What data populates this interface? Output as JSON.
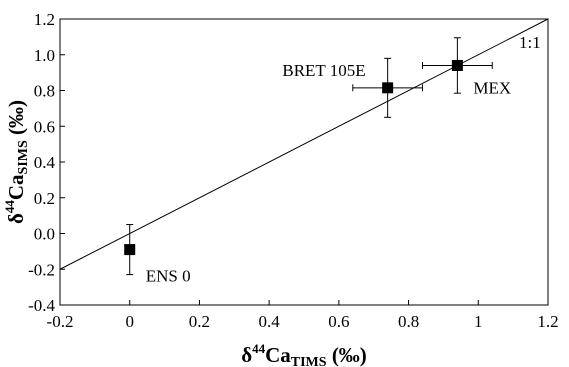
{
  "chart_data": {
    "type": "scatter",
    "title": "",
    "xlabel": {
      "main": "δ",
      "sup": "44",
      "name": "Ca",
      "sub": "TIMS",
      "unit": " (‰)"
    },
    "ylabel": {
      "main": "δ",
      "sup": "44",
      "name": "Ca",
      "sub": "SIMS",
      "unit": " (‰)"
    },
    "xlim": [
      -0.2,
      1.2
    ],
    "ylim": [
      -0.4,
      1.2
    ],
    "x_ticks": [
      -0.2,
      0,
      0.2,
      0.4,
      0.6,
      0.8,
      1,
      1.2
    ],
    "x_tick_labels": [
      "-0.2",
      "0",
      "0.2",
      "0.4",
      "0.6",
      "0.8",
      "1",
      "1.2"
    ],
    "y_ticks": [
      -0.4,
      -0.2,
      0.0,
      0.2,
      0.4,
      0.6,
      0.8,
      1.0,
      1.2
    ],
    "y_tick_labels": [
      "-0.4",
      "-0.2",
      "0.0",
      "0.2",
      "0.4",
      "0.6",
      "0.8",
      "1.0",
      "1.2"
    ],
    "grid": false,
    "reference_line": {
      "label": "1:1",
      "from": [
        -0.2,
        -0.2
      ],
      "to": [
        1.2,
        1.2
      ]
    },
    "points": [
      {
        "label": "ENS 0",
        "x": 0.0,
        "y": -0.09,
        "xerr": 0.0,
        "yerr": 0.14
      },
      {
        "label": "BRET 105E",
        "x": 0.74,
        "y": 0.815,
        "xerr": 0.1,
        "yerr": 0.165
      },
      {
        "label": "MEX",
        "x": 0.94,
        "y": 0.94,
        "xerr": 0.1,
        "yerr": 0.155
      }
    ]
  }
}
